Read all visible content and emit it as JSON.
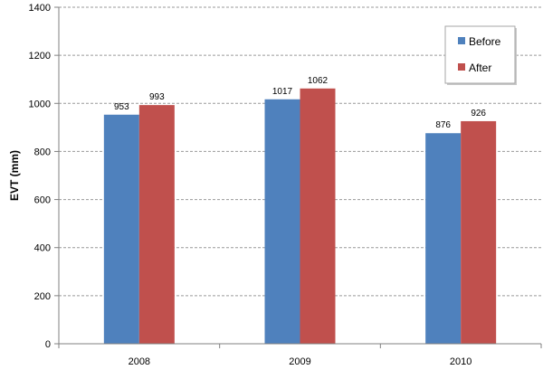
{
  "chart_data": {
    "type": "bar",
    "title": "",
    "xlabel": "",
    "ylabel": "EVT (mm)",
    "categories": [
      "2008",
      "2009",
      "2010"
    ],
    "series": [
      {
        "name": "Before",
        "values": [
          953,
          1017,
          876
        ],
        "color": "#4f81bd"
      },
      {
        "name": "After",
        "values": [
          993,
          1062,
          926
        ],
        "color": "#c0504d"
      }
    ],
    "ylim": [
      0,
      1400
    ],
    "yticks": [
      0,
      200,
      400,
      600,
      800,
      1000,
      1200,
      1400
    ],
    "grid": "horizontal dashed",
    "legend_position": "top-right",
    "data_labels": true
  }
}
